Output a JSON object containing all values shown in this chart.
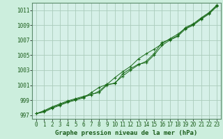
{
  "title": "Graphe pression niveau de la mer (hPa)",
  "background_color": "#cceedd",
  "plot_bg_color": "#d6f0e8",
  "grid_color": "#aaccbb",
  "line_color": "#1a6b1a",
  "marker_color": "#1a6b1a",
  "xlim": [
    -0.5,
    23.5
  ],
  "ylim": [
    996.5,
    1012.0
  ],
  "xticks": [
    0,
    1,
    2,
    3,
    4,
    5,
    6,
    7,
    8,
    9,
    10,
    11,
    12,
    13,
    14,
    15,
    16,
    17,
    18,
    19,
    20,
    21,
    22,
    23
  ],
  "yticks": [
    997,
    999,
    1001,
    1003,
    1005,
    1007,
    1009,
    1011
  ],
  "series1": [
    [
      0,
      997.2
    ],
    [
      1,
      997.5
    ],
    [
      2,
      998.0
    ],
    [
      3,
      998.4
    ],
    [
      4,
      998.8
    ],
    [
      5,
      999.1
    ],
    [
      6,
      999.4
    ],
    [
      7,
      999.7
    ],
    [
      8,
      1000.2
    ],
    [
      9,
      1001.1
    ],
    [
      10,
      1001.2
    ],
    [
      11,
      1002.5
    ],
    [
      12,
      1003.2
    ],
    [
      13,
      1003.8
    ],
    [
      14,
      1004.0
    ],
    [
      15,
      1005.0
    ],
    [
      16,
      1006.3
    ],
    [
      17,
      1007.0
    ],
    [
      18,
      1007.5
    ],
    [
      19,
      1008.5
    ],
    [
      20,
      1009.0
    ],
    [
      21,
      1009.8
    ],
    [
      22,
      1010.5
    ],
    [
      23,
      1011.5
    ]
  ],
  "series2": [
    [
      0,
      997.2
    ],
    [
      1,
      997.4
    ],
    [
      2,
      997.9
    ],
    [
      3,
      998.3
    ],
    [
      4,
      998.7
    ],
    [
      5,
      999.0
    ],
    [
      6,
      999.3
    ],
    [
      7,
      1000.0
    ],
    [
      8,
      1000.7
    ],
    [
      9,
      1001.1
    ],
    [
      10,
      1002.0
    ],
    [
      11,
      1002.8
    ],
    [
      12,
      1003.5
    ],
    [
      13,
      1004.5
    ],
    [
      14,
      1005.2
    ],
    [
      15,
      1005.8
    ],
    [
      16,
      1006.5
    ],
    [
      17,
      1007.2
    ],
    [
      18,
      1007.8
    ],
    [
      19,
      1008.6
    ],
    [
      20,
      1009.1
    ],
    [
      21,
      1009.9
    ],
    [
      22,
      1010.6
    ],
    [
      23,
      1011.6
    ]
  ],
  "series3": [
    [
      0,
      997.2
    ],
    [
      1,
      997.6
    ],
    [
      2,
      998.1
    ],
    [
      3,
      998.5
    ],
    [
      4,
      998.9
    ],
    [
      5,
      999.2
    ],
    [
      6,
      999.5
    ],
    [
      7,
      999.8
    ],
    [
      8,
      1000.0
    ],
    [
      9,
      1001.0
    ],
    [
      10,
      1001.3
    ],
    [
      11,
      1002.2
    ],
    [
      12,
      1003.0
    ],
    [
      13,
      1003.7
    ],
    [
      14,
      1004.2
    ],
    [
      15,
      1005.2
    ],
    [
      16,
      1006.7
    ],
    [
      17,
      1007.1
    ],
    [
      18,
      1007.6
    ],
    [
      19,
      1008.7
    ],
    [
      20,
      1009.2
    ],
    [
      21,
      1010.0
    ],
    [
      22,
      1010.7
    ],
    [
      23,
      1011.7
    ]
  ],
  "title_fontsize": 6.5,
  "tick_fontsize": 5.5
}
